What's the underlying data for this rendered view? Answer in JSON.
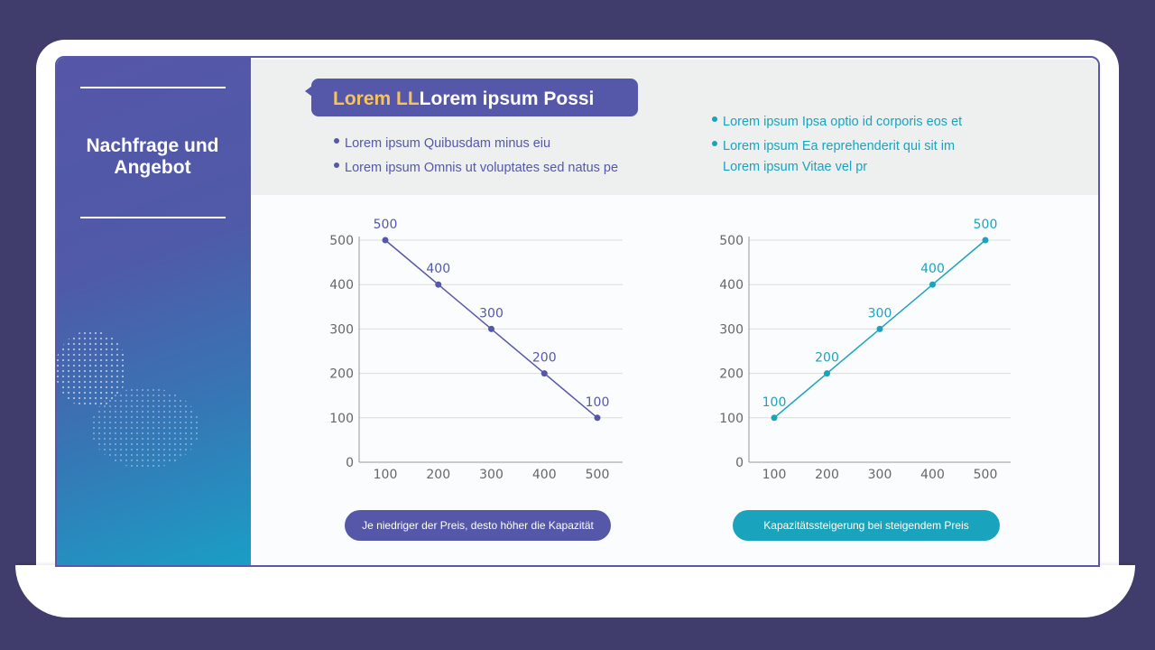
{
  "sidebar": {
    "title": "Nachfrage und Angebot"
  },
  "header": {
    "title_highlight": "Lorem LL",
    "title_rest": "Lorem ipsum Possi"
  },
  "bullets_left": [
    "Lorem ipsum Quibusdam minus eiu",
    "Lorem ipsum Omnis ut voluptates sed natus pe"
  ],
  "bullets_right": [
    "Lorem ipsum Ipsa optio id corporis eos et",
    "Lorem ipsum Ea reprehenderit qui sit im",
    "Lorem ipsum Vitae vel pr"
  ],
  "colors": {
    "purple": "#5557a8",
    "teal": "#1aa3bd",
    "accent": "#f7c35a"
  },
  "buttons": {
    "left": "Je niedriger der Preis, desto höher die Kapazität",
    "right": "Kapazitätssteigerung bei steigendem Preis"
  },
  "chart_data": [
    {
      "type": "line",
      "x": [
        100,
        200,
        300,
        400,
        500
      ],
      "values": [
        500,
        400,
        300,
        200,
        100
      ],
      "data_labels": [
        "500",
        "400",
        "300",
        "200",
        "100"
      ],
      "x_ticks": [
        "100",
        "200",
        "300",
        "400",
        "500"
      ],
      "y_ticks": [
        "0",
        "100",
        "200",
        "300",
        "400",
        "500"
      ],
      "ylim": [
        0,
        500
      ],
      "grid": true,
      "color": "#5557a8"
    },
    {
      "type": "line",
      "x": [
        100,
        200,
        300,
        400,
        500
      ],
      "values": [
        100,
        200,
        300,
        400,
        500
      ],
      "data_labels": [
        "100",
        "200",
        "300",
        "400",
        "500"
      ],
      "x_ticks": [
        "100",
        "200",
        "300",
        "400",
        "500"
      ],
      "y_ticks": [
        "0",
        "100",
        "200",
        "300",
        "400",
        "500"
      ],
      "ylim": [
        0,
        500
      ],
      "grid": true,
      "color": "#1aa3bd"
    }
  ]
}
